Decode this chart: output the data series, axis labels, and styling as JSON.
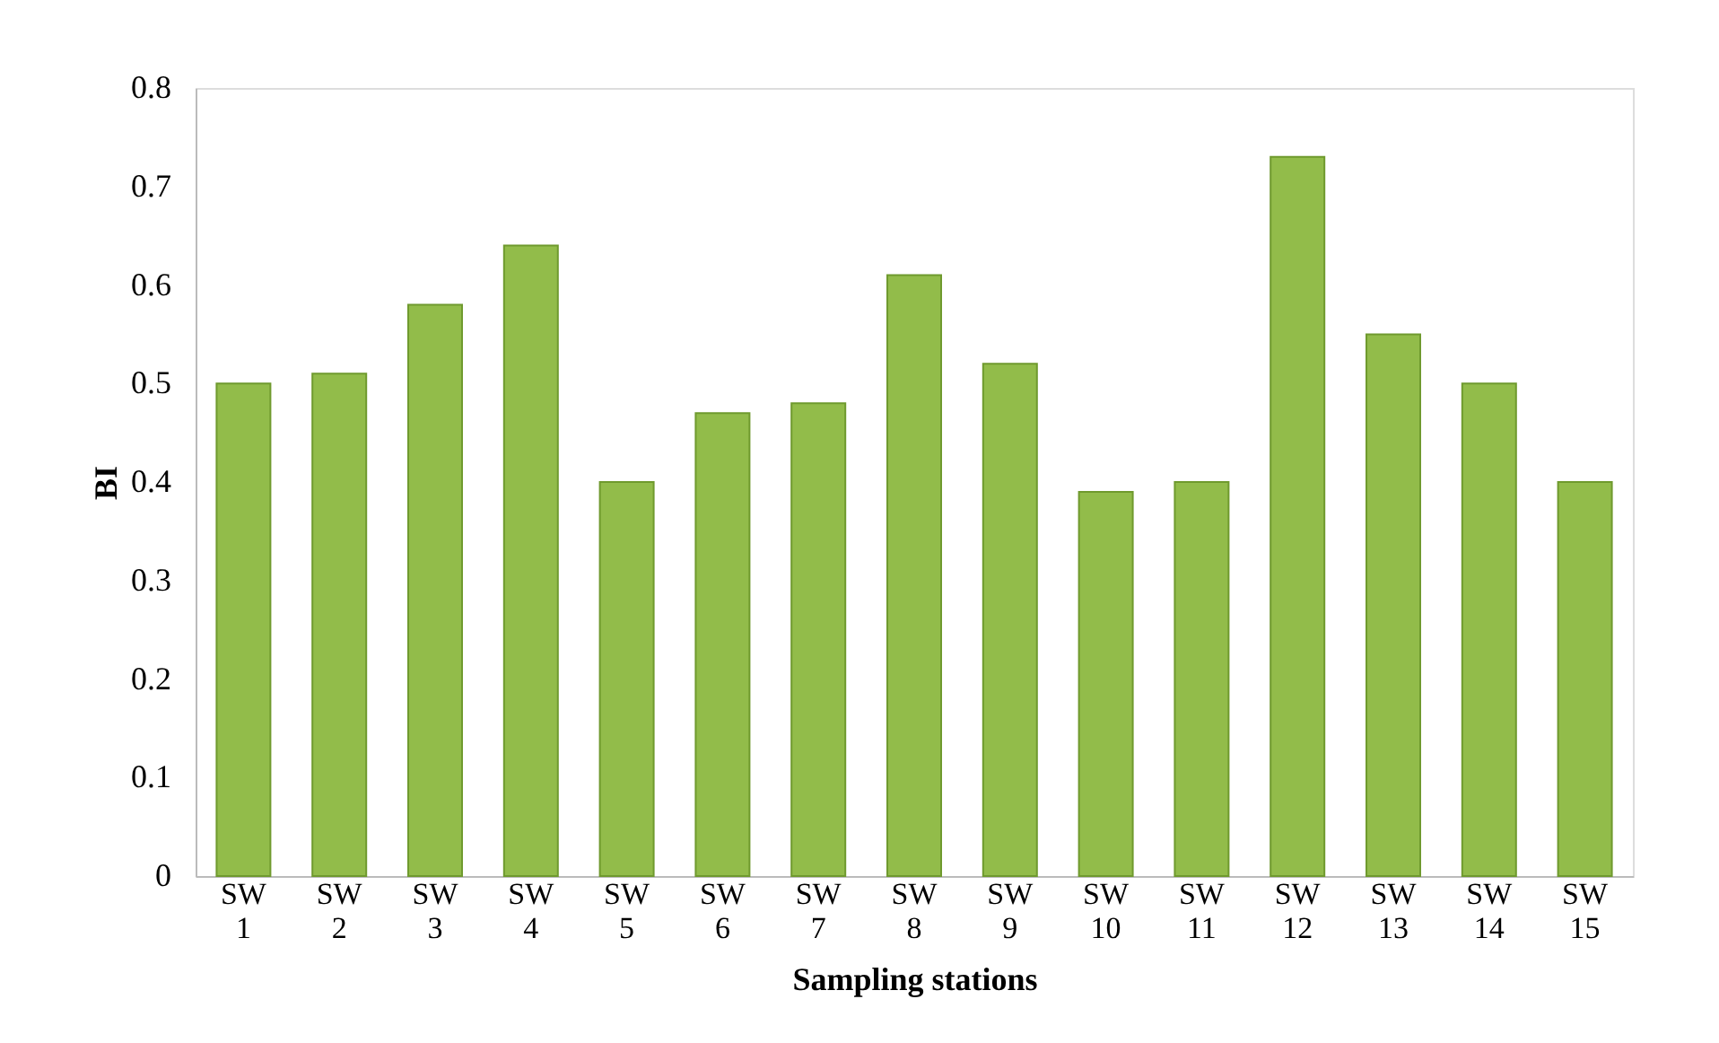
{
  "chart_data": {
    "type": "bar",
    "xlabel": "Sampling stations",
    "ylabel": "BI",
    "categories": [
      "SW 1",
      "SW 2",
      "SW 3",
      "SW 4",
      "SW 5",
      "SW 6",
      "SW 7",
      "SW 8",
      "SW 9",
      "SW 10",
      "SW 11",
      "SW 12",
      "SW 13",
      "SW 14",
      "SW 15"
    ],
    "values": [
      0.5,
      0.51,
      0.58,
      0.64,
      0.4,
      0.47,
      0.48,
      0.61,
      0.52,
      0.39,
      0.4,
      0.73,
      0.55,
      0.5,
      0.4
    ],
    "color": "#92bc4a",
    "ylim": [
      0,
      0.8
    ],
    "yticks": [
      0,
      0.1,
      0.2,
      0.3,
      0.4,
      0.5,
      0.6,
      0.7,
      0.8
    ],
    "grid": false
  }
}
